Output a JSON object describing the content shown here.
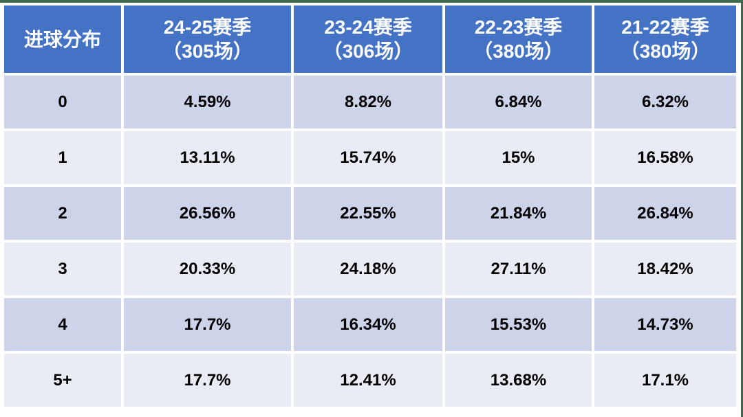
{
  "colors": {
    "header_bg": "#4472C4",
    "header_text": "#FFFFFF",
    "row_dark": "#CDD3E9",
    "row_light": "#E9EBF5",
    "body_text": "#000000",
    "edge_border": "#3E6B4E",
    "cell_gap": "#FFFFFF"
  },
  "table": {
    "corner_label": "进球分布",
    "columns": [
      {
        "line1": "24-25赛季",
        "line2": "（305场）"
      },
      {
        "line1": "23-24赛季",
        "line2": "（306场）"
      },
      {
        "line1": "22-23赛季",
        "line2": "（380场）"
      },
      {
        "line1": "21-22赛季",
        "line2": "（380场）"
      }
    ],
    "rows": [
      {
        "label": "0",
        "values": [
          "4.59%",
          "8.82%",
          "6.84%",
          "6.32%"
        ]
      },
      {
        "label": "1",
        "values": [
          "13.11%",
          "15.74%",
          "15%",
          "16.58%"
        ]
      },
      {
        "label": "2",
        "values": [
          "26.56%",
          "22.55%",
          "21.84%",
          "26.84%"
        ]
      },
      {
        "label": "3",
        "values": [
          "20.33%",
          "24.18%",
          "27.11%",
          "18.42%"
        ]
      },
      {
        "label": "4",
        "values": [
          "17.7%",
          "16.34%",
          "15.53%",
          "14.73%"
        ]
      },
      {
        "label": "5+",
        "values": [
          "17.7%",
          "12.41%",
          "13.68%",
          "17.1%"
        ]
      }
    ]
  },
  "chart_data": {
    "type": "table",
    "title": "进球分布",
    "row_header": "进球分布",
    "categories": [
      "0",
      "1",
      "2",
      "3",
      "4",
      "5+"
    ],
    "series": [
      {
        "name": "24-25赛季（305场）",
        "values": [
          4.59,
          13.11,
          26.56,
          20.33,
          17.7,
          17.7
        ]
      },
      {
        "name": "23-24赛季（306场）",
        "values": [
          8.82,
          15.74,
          22.55,
          24.18,
          16.34,
          12.41
        ]
      },
      {
        "name": "22-23赛季（380场）",
        "values": [
          6.84,
          15,
          21.84,
          27.11,
          15.53,
          13.68
        ]
      },
      {
        "name": "21-22赛季（380场）",
        "values": [
          6.32,
          16.58,
          26.84,
          18.42,
          14.73,
          17.1
        ]
      }
    ],
    "value_unit": "%"
  }
}
